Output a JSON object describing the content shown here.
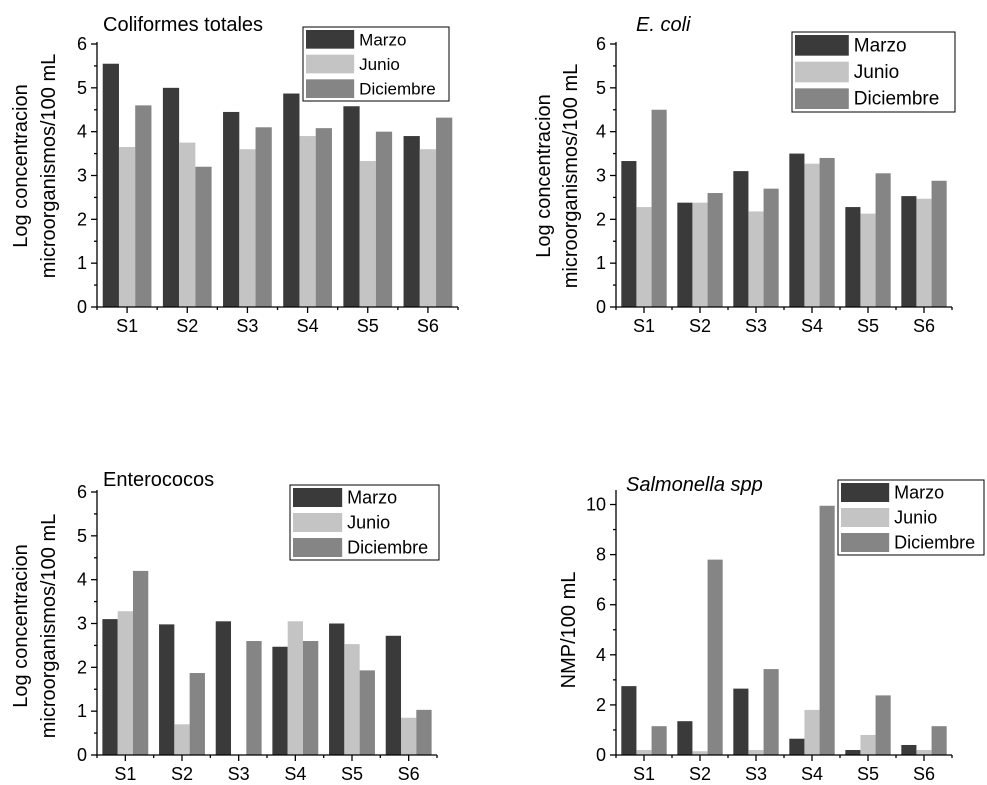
{
  "colors": {
    "marzo": "#3a3a3a",
    "junio": "#c4c4c4",
    "diciembre": "#858585"
  },
  "chart_data": [
    {
      "type": "bar",
      "title": "Coliformes totales",
      "title_italic": false,
      "categories": [
        "S1",
        "S2",
        "S3",
        "S4",
        "S5",
        "S6"
      ],
      "ylabel": [
        "Log concentracion",
        "microorganismos/100 mL"
      ],
      "ylim": [
        0,
        6
      ],
      "yticks": [
        "0",
        "1",
        "2",
        "3",
        "4",
        "5",
        "6"
      ],
      "legend_position": "top-right",
      "series": [
        {
          "name": "Marzo",
          "values": [
            5.55,
            5.0,
            4.45,
            4.87,
            4.58,
            3.9
          ]
        },
        {
          "name": "Junio",
          "values": [
            3.65,
            3.75,
            3.6,
            3.9,
            3.33,
            3.6
          ]
        },
        {
          "name": "Diciembre",
          "values": [
            4.6,
            3.2,
            4.1,
            4.08,
            4.0,
            4.32
          ]
        }
      ]
    },
    {
      "type": "bar",
      "title": "E. coli",
      "title_italic": true,
      "categories": [
        "S1",
        "S2",
        "S3",
        "S4",
        "S5",
        "S6"
      ],
      "ylabel": [
        "Log concentracion",
        "microorganismos/100 mL"
      ],
      "ylim": [
        0,
        6
      ],
      "yticks": [
        "0",
        "1",
        "2",
        "3",
        "4",
        "5",
        "6"
      ],
      "legend_position": "top-right",
      "series": [
        {
          "name": "Marzo",
          "values": [
            3.33,
            2.38,
            3.1,
            3.5,
            2.28,
            2.53
          ]
        },
        {
          "name": "Junio",
          "values": [
            2.28,
            2.38,
            2.18,
            3.27,
            2.13,
            2.47
          ]
        },
        {
          "name": "Diciembre",
          "values": [
            4.5,
            2.6,
            2.7,
            3.4,
            3.05,
            2.88
          ]
        }
      ]
    },
    {
      "type": "bar",
      "title": "Enterococos",
      "title_italic": false,
      "categories": [
        "S1",
        "S2",
        "S3",
        "S4",
        "S5",
        "S6"
      ],
      "ylabel": [
        "Log concentracion",
        "microorganismos/100 mL"
      ],
      "ylim": [
        0,
        6
      ],
      "yticks": [
        "0",
        "1",
        "2",
        "3",
        "4",
        "5",
        "6"
      ],
      "legend_position": "top-right",
      "series": [
        {
          "name": "Marzo",
          "values": [
            3.1,
            2.98,
            3.05,
            2.47,
            3.0,
            2.72
          ]
        },
        {
          "name": "Junio",
          "values": [
            3.28,
            0.7,
            0,
            3.05,
            2.53,
            0.85
          ]
        },
        {
          "name": "Diciembre",
          "values": [
            4.2,
            1.87,
            2.6,
            2.6,
            1.93,
            1.03
          ]
        }
      ]
    },
    {
      "type": "bar",
      "title": "Salmonella spp",
      "title_italic": true,
      "categories": [
        "S1",
        "S2",
        "S3",
        "S4",
        "S5",
        "S6"
      ],
      "ylabel": [
        "NMP/100 mL"
      ],
      "ylim": [
        0,
        10.5
      ],
      "yticks": [
        "0",
        "2",
        "4",
        "6",
        "8",
        "10"
      ],
      "legend_position": "top-right",
      "series": [
        {
          "name": "Marzo",
          "values": [
            2.75,
            1.35,
            2.65,
            0.65,
            0.2,
            0.4
          ]
        },
        {
          "name": "Junio",
          "values": [
            0.2,
            0.15,
            0.2,
            1.8,
            0.8,
            0.2
          ]
        },
        {
          "name": "Diciembre",
          "values": [
            1.15,
            7.8,
            3.43,
            9.95,
            2.38,
            1.15
          ]
        }
      ]
    }
  ]
}
